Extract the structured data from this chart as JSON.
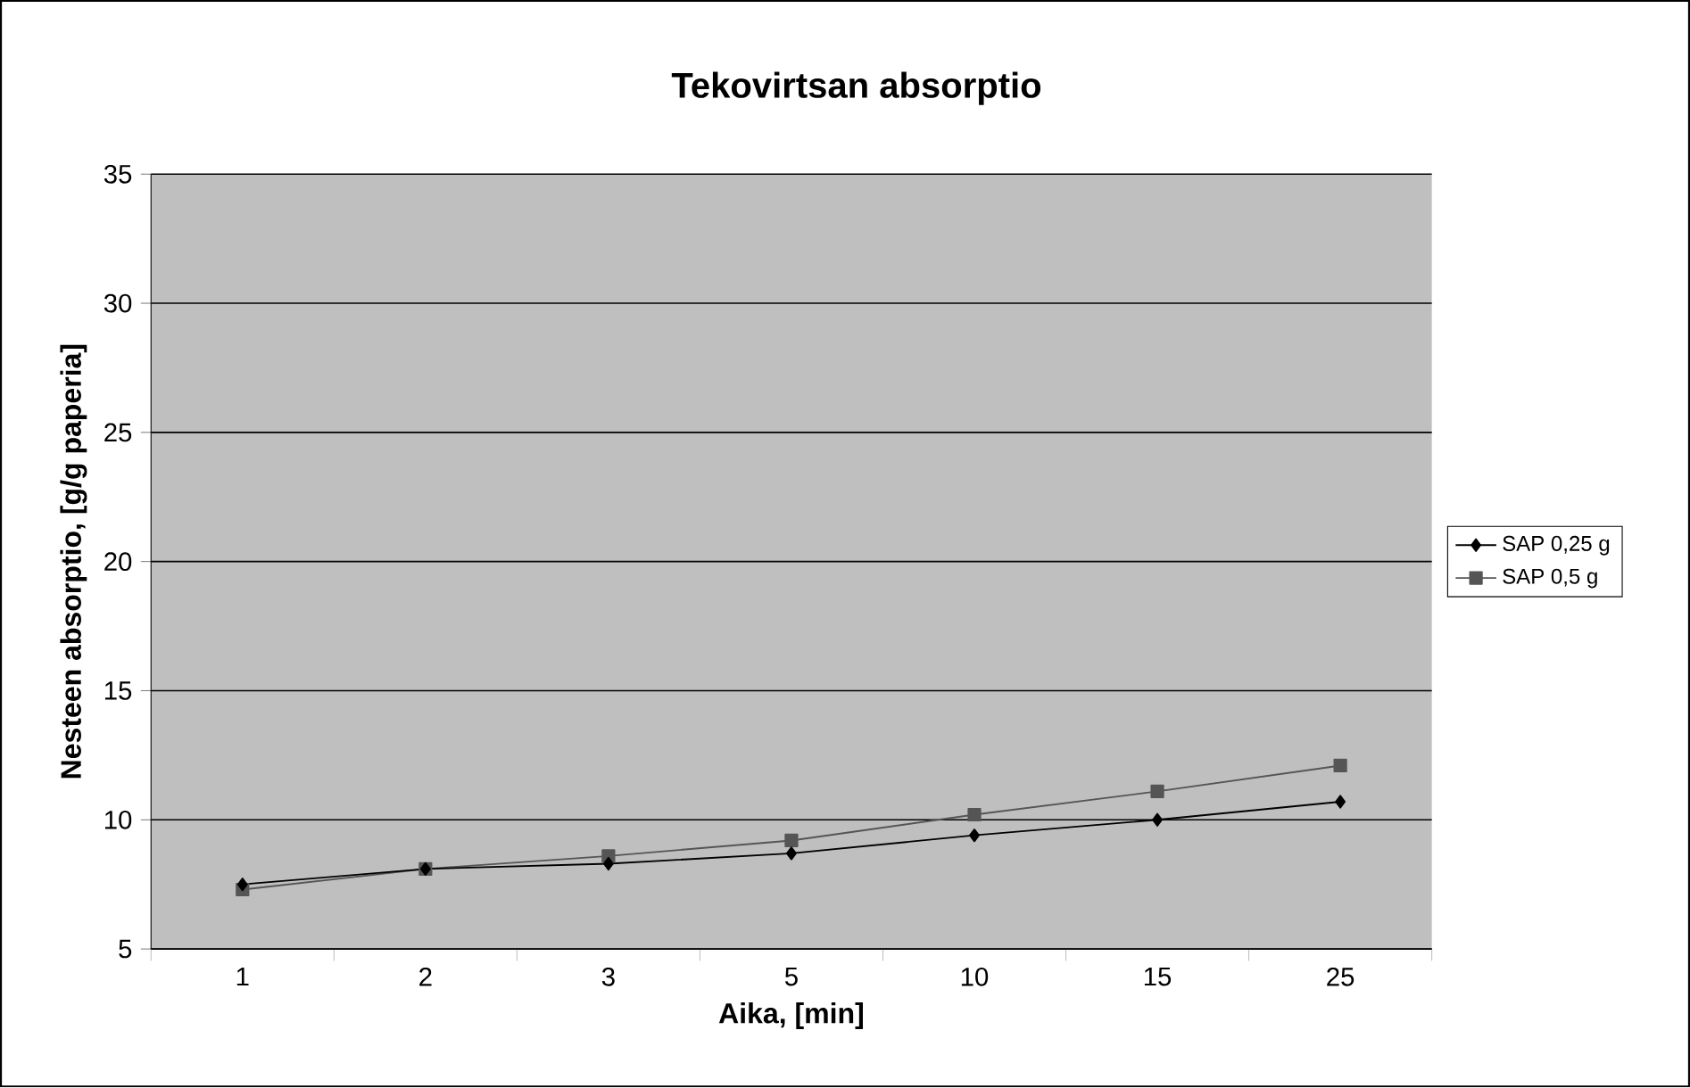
{
  "chart_data": {
    "type": "line",
    "title": "Tekovirtsan absorptio",
    "xlabel": "Aika, [min]",
    "ylabel": "Nesteen absorptio, [g/g paperia]",
    "categories": [
      "1",
      "2",
      "3",
      "5",
      "10",
      "15",
      "25"
    ],
    "series": [
      {
        "name": "SAP 0,25 g",
        "color": "#000000",
        "marker": "diamond",
        "values": [
          7.5,
          8.1,
          8.3,
          8.7,
          9.4,
          10.0,
          10.7
        ]
      },
      {
        "name": "SAP 0,5 g",
        "color": "#555555",
        "marker": "square",
        "values": [
          7.3,
          8.1,
          8.6,
          9.2,
          10.2,
          11.1,
          12.1
        ]
      }
    ],
    "ylim": [
      5,
      35
    ],
    "yticks": [
      5,
      10,
      15,
      20,
      25,
      30,
      35
    ],
    "grid": "y",
    "legend": "right",
    "line_style": "solid"
  }
}
